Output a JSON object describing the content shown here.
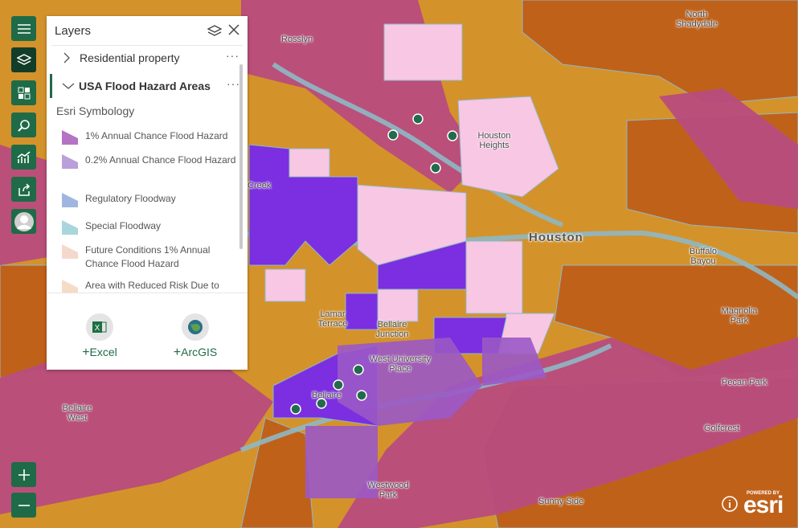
{
  "map": {
    "labels": [
      "Rosslyn",
      "North Shadydale",
      "Houston Heights",
      "Creek",
      "Houston",
      "Buffalo Bayou",
      "Lamar Terrace",
      "Bellaire Junction",
      "West University Place",
      "Bellaire",
      "Bellaire West",
      "Magnolia Park",
      "Pecan Park",
      "Golfcrest",
      "Westwood Park",
      "Sunny Side"
    ]
  },
  "layers_panel": {
    "title": "Layers",
    "layers": [
      "Residential property",
      "USA Flood Hazard Areas"
    ],
    "legend_heading": "Esri Symbology",
    "legend": [
      "1% Annual Chance Flood Hazard",
      "0.2% Annual Chance Flood Hazard",
      "Regulatory Floodway",
      "Special Floodway",
      "Future Conditions 1% Annual Chance Flood Hazard",
      "Area with Reduced Risk Due to"
    ],
    "actions": [
      "Excel",
      "ArcGIS"
    ]
  },
  "attribution": {
    "powered_by": "POWERED BY",
    "brand": "esri"
  }
}
